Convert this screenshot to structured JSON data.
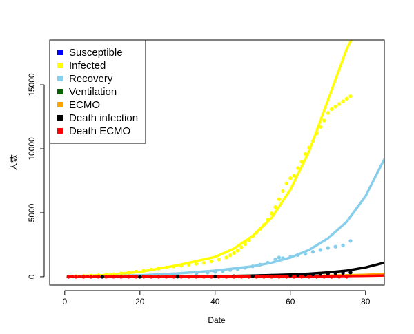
{
  "chart_data": {
    "type": "scatter",
    "xlabel": "Date",
    "ylabel": "人数",
    "xlim": [
      -4,
      85
    ],
    "ylim": [
      -650,
      18500
    ],
    "x_ticks": [
      0,
      20,
      40,
      60,
      80
    ],
    "y_ticks": [
      0,
      5000,
      10000,
      15000
    ],
    "legend_position": "top-left",
    "legend": [
      {
        "label": "Susceptible",
        "color": "#0000ff"
      },
      {
        "label": "Infected",
        "color": "#ffff00"
      },
      {
        "label": "Recovery",
        "color": "#87ceeb"
      },
      {
        "label": "Ventilation",
        "color": "#006400"
      },
      {
        "label": "ECMO",
        "color": "#ffa500"
      },
      {
        "label": "Death infection",
        "color": "#000000"
      },
      {
        "label": "Death ECMO",
        "color": "#ff0000"
      }
    ],
    "series": [
      {
        "name": "Infected",
        "kind": "points",
        "color": "#ffff00",
        "x": [
          1,
          3,
          5,
          7,
          9,
          11,
          13,
          15,
          17,
          19,
          21,
          23,
          25,
          27,
          29,
          31,
          33,
          35,
          37,
          39,
          41,
          43,
          44,
          45,
          46,
          47,
          48,
          49,
          50,
          51,
          52,
          53,
          54,
          55,
          56,
          57,
          58,
          59,
          60,
          61,
          62,
          63,
          64,
          65,
          66,
          67,
          68,
          69,
          70,
          71,
          72,
          73,
          74,
          75,
          76
        ],
        "y": [
          20,
          40,
          60,
          90,
          120,
          160,
          200,
          260,
          320,
          400,
          480,
          560,
          640,
          720,
          800,
          870,
          940,
          1010,
          1080,
          1200,
          1350,
          1500,
          1680,
          1850,
          2050,
          2300,
          2550,
          2850,
          3150,
          3450,
          3750,
          4050,
          4450,
          4950,
          5450,
          6050,
          6700,
          7300,
          7700,
          7900,
          8500,
          9000,
          9600,
          10100,
          10600,
          11200,
          11700,
          12200,
          12800,
          13100,
          13300,
          13500,
          13700,
          13900,
          14100
        ]
      },
      {
        "name": "Recovery",
        "kind": "points",
        "color": "#87ceeb",
        "x": [
          1,
          5,
          10,
          15,
          20,
          25,
          30,
          35,
          38,
          40,
          42,
          44,
          46,
          48,
          50,
          52,
          54,
          56,
          57,
          58,
          60,
          62,
          64,
          66,
          68,
          70,
          72,
          74,
          76
        ],
        "y": [
          0,
          5,
          15,
          40,
          70,
          120,
          180,
          260,
          320,
          380,
          450,
          520,
          600,
          700,
          820,
          950,
          1100,
          1350,
          1500,
          1450,
          1550,
          1700,
          1800,
          1950,
          2100,
          2250,
          2350,
          2450,
          2800
        ]
      },
      {
        "name": "Death infection",
        "kind": "points",
        "color": "#000000",
        "x": [
          1,
          5,
          10,
          15,
          20,
          25,
          30,
          35,
          40,
          45,
          50,
          55,
          60,
          62,
          64,
          66,
          68,
          70,
          72,
          74,
          76
        ],
        "y": [
          0,
          0,
          0,
          0,
          0,
          5,
          10,
          15,
          25,
          40,
          55,
          80,
          110,
          130,
          160,
          190,
          220,
          250,
          280,
          300,
          330
        ]
      },
      {
        "name": "Death ECMO",
        "kind": "points",
        "color": "#ff0000",
        "x": [
          1,
          3,
          5,
          7,
          9,
          11,
          13,
          15,
          17,
          19,
          21,
          23,
          25,
          27,
          29,
          31,
          33,
          35,
          37,
          39,
          41,
          43,
          45,
          47,
          49,
          51,
          53,
          55,
          57,
          59,
          61,
          63,
          65,
          67,
          69,
          71,
          73,
          75
        ],
        "y": [
          0,
          0,
          0,
          0,
          0,
          0,
          0,
          0,
          0,
          0,
          0,
          0,
          0,
          0,
          0,
          0,
          0,
          0,
          0,
          0,
          0,
          0,
          0,
          0,
          0,
          0,
          0,
          0,
          0,
          0,
          0,
          0,
          0,
          0,
          0,
          0,
          0,
          0
        ]
      },
      {
        "name": "Infected",
        "kind": "line",
        "color": "#ffff00",
        "x": [
          1,
          10,
          20,
          30,
          40,
          45,
          50,
          55,
          60,
          65,
          70,
          75,
          78
        ],
        "y": [
          30,
          120,
          380,
          900,
          1550,
          2200,
          3200,
          4600,
          6800,
          9800,
          13800,
          17800,
          19500
        ]
      },
      {
        "name": "Recovery",
        "kind": "line",
        "color": "#87ceeb",
        "x": [
          1,
          20,
          30,
          40,
          50,
          55,
          60,
          65,
          70,
          75,
          80,
          85
        ],
        "y": [
          0,
          110,
          260,
          480,
          820,
          1100,
          1500,
          2100,
          3000,
          4300,
          6300,
          9200
        ]
      },
      {
        "name": "Death infection",
        "kind": "line",
        "color": "#000000",
        "x": [
          1,
          30,
          40,
          50,
          60,
          65,
          70,
          75,
          80,
          85
        ],
        "y": [
          0,
          20,
          40,
          90,
          170,
          240,
          340,
          480,
          730,
          1100
        ]
      },
      {
        "name": "ECMO",
        "kind": "line",
        "color": "#ffa500",
        "x": [
          1,
          40,
          60,
          70,
          80,
          85
        ],
        "y": [
          0,
          10,
          40,
          80,
          150,
          220
        ]
      },
      {
        "name": "Death ECMO",
        "kind": "line",
        "color": "#ff0000",
        "x": [
          1,
          40,
          60,
          70,
          80,
          85
        ],
        "y": [
          0,
          5,
          20,
          40,
          70,
          100
        ]
      }
    ]
  }
}
